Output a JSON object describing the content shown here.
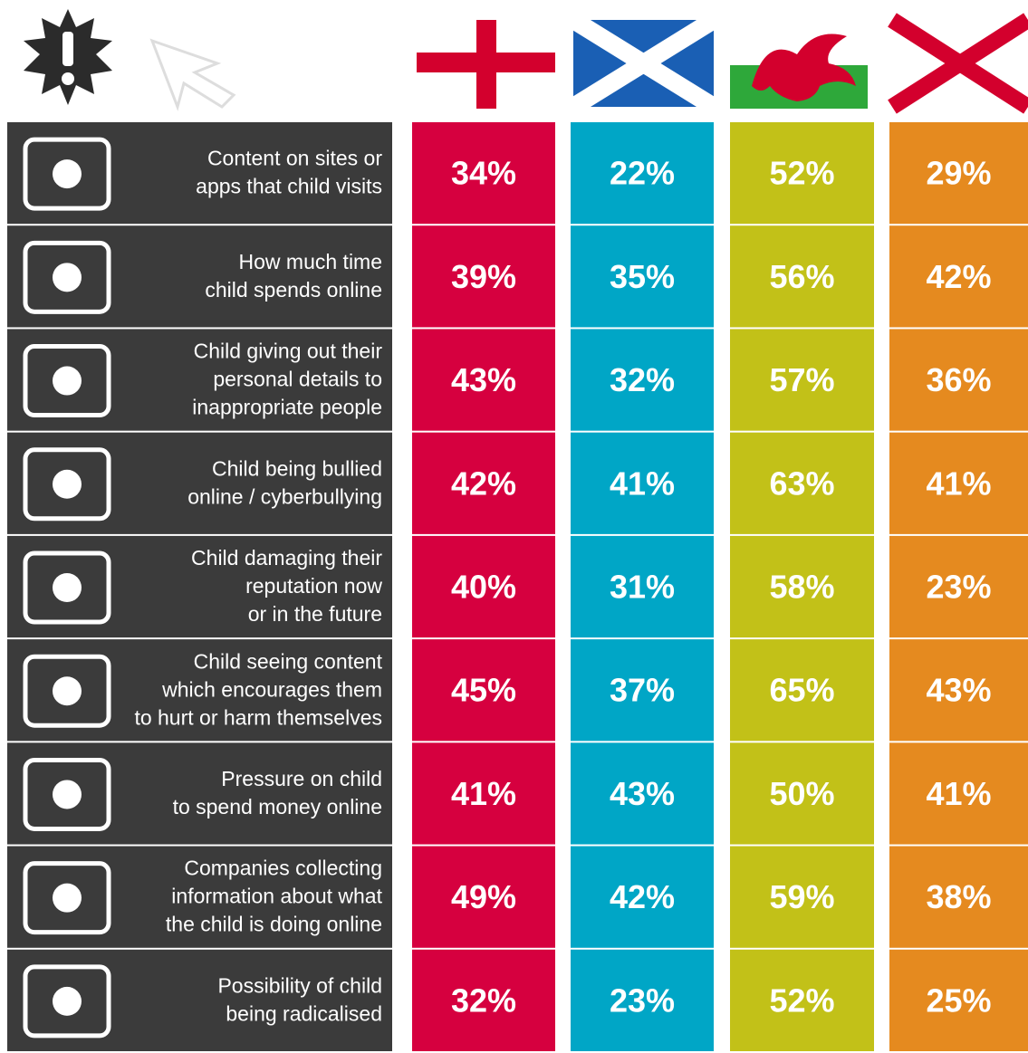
{
  "table": {
    "rows": [
      {
        "label": [
          "Content on sites or",
          "apps that child visits"
        ],
        "values": [
          "34%",
          "22%",
          "52%",
          "29%"
        ]
      },
      {
        "label": [
          "How much time",
          "child spends online"
        ],
        "values": [
          "39%",
          "35%",
          "56%",
          "42%"
        ]
      },
      {
        "label": [
          "Child giving out their",
          "personal details to",
          "inappropriate people"
        ],
        "values": [
          "43%",
          "32%",
          "57%",
          "36%"
        ]
      },
      {
        "label": [
          "Child being bullied",
          "online / cyberbullying"
        ],
        "values": [
          "42%",
          "41%",
          "63%",
          "41%"
        ]
      },
      {
        "label": [
          "Child damaging their",
          "reputation now",
          "or in the future"
        ],
        "values": [
          "40%",
          "31%",
          "58%",
          "23%"
        ]
      },
      {
        "label": [
          "Child seeing content",
          "which encourages them",
          "to hurt or harm themselves"
        ],
        "values": [
          "45%",
          "37%",
          "65%",
          "43%"
        ]
      },
      {
        "label": [
          "Pressure on child",
          "to spend money online"
        ],
        "values": [
          "41%",
          "43%",
          "50%",
          "41%"
        ]
      },
      {
        "label": [
          "Companies collecting",
          "information about what",
          "the child is doing online"
        ],
        "values": [
          "49%",
          "42%",
          "59%",
          "38%"
        ]
      },
      {
        "label": [
          "Possibility of child",
          "being radicalised"
        ],
        "values": [
          "32%",
          "23%",
          "52%",
          "25%"
        ]
      }
    ]
  }
}
